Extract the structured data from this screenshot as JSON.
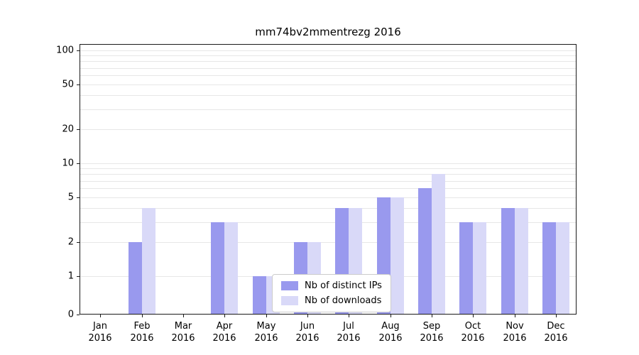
{
  "chart_data": {
    "type": "bar",
    "title": "mm74bv2mmentrezg 2016",
    "categories": [
      "Jan 2016",
      "Feb 2016",
      "Mar 2016",
      "Apr 2016",
      "May 2016",
      "Jun 2016",
      "Jul 2016",
      "Aug 2016",
      "Sep 2016",
      "Oct 2016",
      "Nov 2016",
      "Dec 2016"
    ],
    "series": [
      {
        "name": "Nb of distinct IPs",
        "color": "#9999ee",
        "values": [
          0,
          2,
          0,
          3,
          1,
          2,
          4,
          5,
          6,
          3,
          4,
          3
        ]
      },
      {
        "name": "Nb of downloads",
        "color": "#d9d9f8",
        "values": [
          0,
          4,
          0,
          3,
          1,
          2,
          4,
          5,
          8,
          3,
          4,
          3
        ]
      }
    ],
    "yscale": "log",
    "yticks": [
      0,
      1,
      2,
      5,
      10,
      20,
      50,
      100
    ],
    "ylim": [
      0,
      100
    ],
    "grid": "horizontal-minor-log",
    "legend_position": "lower center"
  }
}
